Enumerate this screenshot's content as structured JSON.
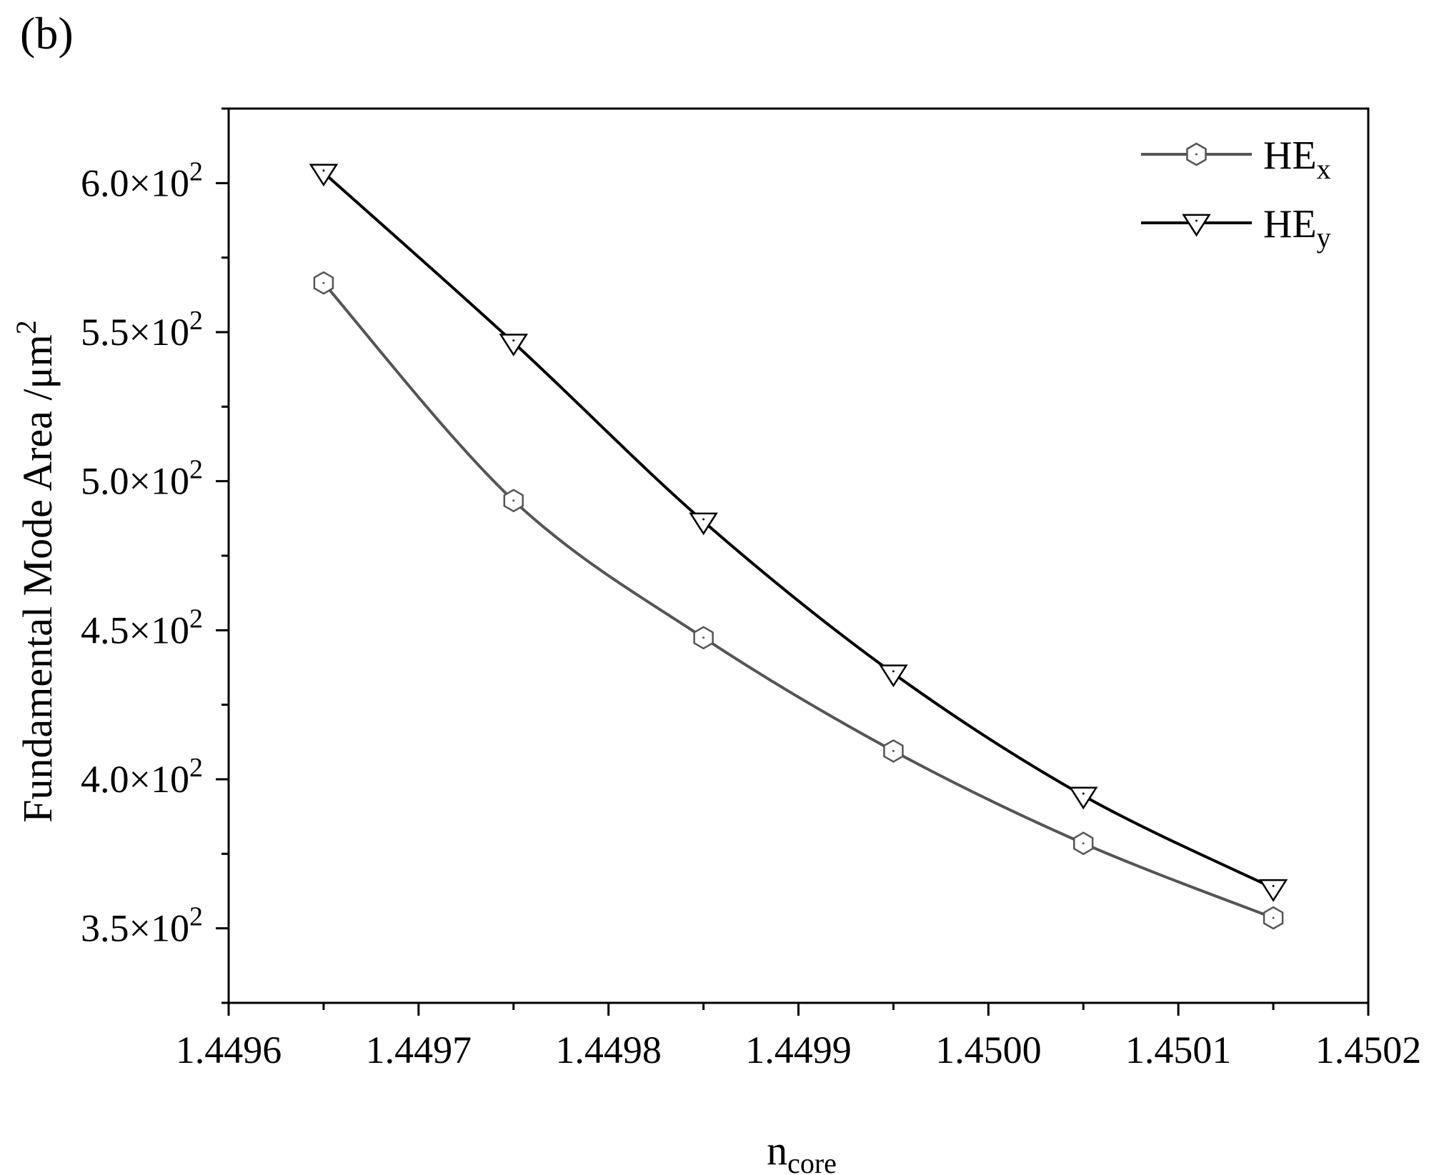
{
  "panel_label": "(b)",
  "chart_data": {
    "type": "line",
    "title": "",
    "xlabel": "n",
    "xlabel_sub": "core",
    "ylabel": "Fundamental Mode Area /μm",
    "ylabel_sup": "2",
    "xlim": [
      1.4496,
      1.4502
    ],
    "ylim": [
      325,
      625
    ],
    "x_ticks": [
      1.4496,
      1.4497,
      1.4498,
      1.4499,
      1.45,
      1.4501,
      1.4502
    ],
    "x_tick_labels": [
      "1.4496",
      "1.4497",
      "1.4498",
      "1.4499",
      "1.4500",
      "1.4501",
      "1.4502"
    ],
    "y_ticks": [
      350,
      400,
      450,
      500,
      550,
      600
    ],
    "y_tick_labels": [
      "3.5×10",
      "4.0×10",
      "4.5×10",
      "5.0×10",
      "5.5×10",
      "6.0×10"
    ],
    "y_tick_label_sup": "2",
    "grid": false,
    "legend_position": "top-right",
    "x": [
      1.44965,
      1.44975,
      1.44985,
      1.44995,
      1.45005,
      1.45015
    ],
    "series": [
      {
        "name": "HE",
        "name_sub": "x",
        "marker": "hexagon",
        "color": "#555555",
        "values": [
          566.5,
          493.5,
          447.5,
          409.5,
          378.5,
          353.5
        ]
      },
      {
        "name": "HE",
        "name_sub": "y",
        "marker": "triangle-down",
        "color": "#000000",
        "values": [
          603.5,
          546.5,
          486.5,
          435.5,
          394.5,
          363.5
        ]
      }
    ]
  }
}
